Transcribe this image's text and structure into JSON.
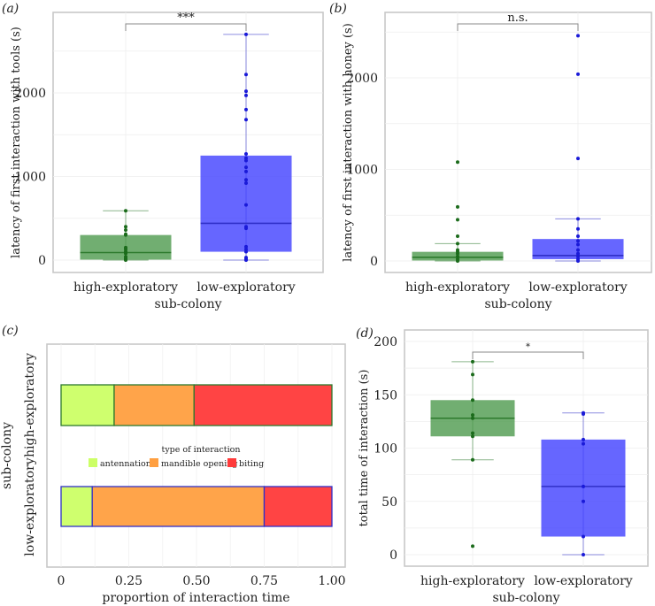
{
  "colors": {
    "high_fill": "#4e9a4e",
    "high_stroke": "#2d7a2d",
    "high_point": "#1b6b1b",
    "low_fill": "#4040ff",
    "low_stroke": "#3030c8",
    "low_point": "#1a1ad8",
    "antennation": "#ccff66",
    "mandible": "#ff9f40",
    "biting": "#ff3a3a"
  },
  "chart_data": [
    {
      "panel": "(a)",
      "type": "box",
      "xlabel": "sub-colony",
      "ylabel": "latency of first interaction with tools (s)",
      "ylim": [
        -150,
        2900
      ],
      "yticks": [
        0,
        1000,
        2000
      ],
      "categories": [
        "high-exploratory",
        "low-exploratory"
      ],
      "significance": "***",
      "groups": [
        {
          "name": "high-exploratory",
          "min": 0,
          "q1": 5,
          "median": 90,
          "q3": 300,
          "max": 590,
          "points": [
            0,
            10,
            20,
            40,
            80,
            100,
            130,
            150,
            300,
            310,
            360,
            400,
            590
          ]
        },
        {
          "name": "low-exploratory",
          "min": 0,
          "q1": 100,
          "median": 440,
          "q3": 1250,
          "max": 2700,
          "points": [
            0,
            10,
            30,
            100,
            130,
            160,
            380,
            400,
            660,
            920,
            960,
            1060,
            1110,
            1190,
            1220,
            1270,
            1680,
            1800,
            1970,
            2020,
            2220,
            2700
          ]
        }
      ]
    },
    {
      "panel": "(b)",
      "type": "box",
      "xlabel": "sub-colony",
      "ylabel": "latency of first interaction with honey (s)",
      "ylim": [
        -130,
        2700
      ],
      "yticks": [
        0,
        1000,
        2000
      ],
      "categories": [
        "high-exploratory",
        "low-exploratory"
      ],
      "significance": "n.s.",
      "groups": [
        {
          "name": "high-exploratory",
          "min": 0,
          "q1": 5,
          "median": 40,
          "q3": 100,
          "max": 190,
          "points": [
            0,
            20,
            50,
            80,
            100,
            120,
            190,
            270,
            450,
            590,
            1080
          ]
        },
        {
          "name": "low-exploratory",
          "min": 0,
          "q1": 20,
          "median": 60,
          "q3": 240,
          "max": 460,
          "points": [
            0,
            20,
            50,
            80,
            120,
            180,
            220,
            270,
            350,
            460,
            1120,
            2040,
            2460
          ]
        }
      ]
    },
    {
      "panel": "(c)",
      "type": "stacked-bar-horizontal",
      "xlabel": "proportion of interaction time",
      "ylabel": "sub-colony",
      "xlim": [
        0,
        1
      ],
      "xticks": [
        "0",
        "0.25",
        "0.50",
        "0.75",
        "1.00"
      ],
      "xtick_values": [
        0,
        0.25,
        0.5,
        0.75,
        1
      ],
      "categories": [
        "high-exploratory",
        "low-exploratory"
      ],
      "legend": {
        "title": "type of interaction",
        "entries": [
          "antennation",
          "mandible opening",
          "biting"
        ],
        "placement": "center"
      },
      "series": [
        {
          "name": "antennation",
          "values": [
            0.196,
            0.115
          ]
        },
        {
          "name": "mandible opening",
          "values": [
            0.295,
            0.635
          ]
        },
        {
          "name": "biting",
          "values": [
            0.509,
            0.25
          ]
        }
      ]
    },
    {
      "panel": "(d)",
      "type": "box",
      "xlabel": "sub-colony",
      "ylabel": "total time of interaction (s)",
      "ylim": [
        -10,
        210
      ],
      "yticks": [
        0,
        50,
        100,
        150,
        200
      ],
      "categories": [
        "high-exploratory",
        "low-exploratory"
      ],
      "significance": "*",
      "groups": [
        {
          "name": "high-exploratory",
          "min": 89,
          "q1": 111,
          "median": 128,
          "q3": 145,
          "max": 181,
          "points": [
            8,
            89,
            111,
            114,
            128,
            131,
            145,
            169,
            181
          ]
        },
        {
          "name": "low-exploratory",
          "min": 0,
          "q1": 17,
          "median": 64,
          "q3": 108,
          "max": 133,
          "points": [
            0,
            17,
            50,
            64,
            104,
            108,
            132,
            133
          ]
        }
      ]
    }
  ]
}
